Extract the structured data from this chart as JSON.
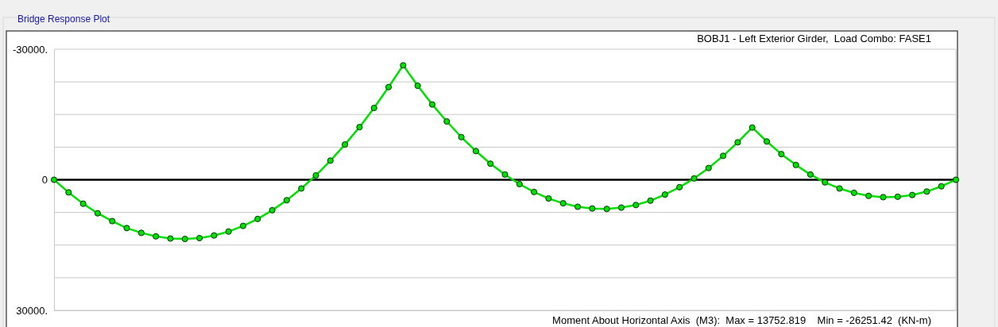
{
  "chart_data": {
    "type": "line",
    "title": "Bridge Response Plot",
    "subtitle": "BOBJ1 - Left Exterior Girder,  Load Combo: FASE1",
    "annotations": [
      "Moment About Horizontal Axis  (M3):  Max = 13752.819    Min = -26251.42  (KN-m)"
    ],
    "categories": [
      null,
      null,
      null,
      null,
      null,
      null,
      null,
      null,
      null,
      null,
      null,
      null,
      null,
      null,
      null,
      null,
      null,
      null,
      null,
      null,
      null,
      null,
      null,
      null,
      null,
      null,
      null,
      null,
      null,
      null,
      null,
      null,
      null,
      null,
      null,
      null,
      null,
      null,
      null,
      null,
      null,
      null,
      null,
      null,
      null,
      null,
      null,
      null,
      null,
      null,
      null,
      null,
      null,
      null,
      null,
      null,
      null,
      null,
      null,
      null,
      null,
      null,
      null
    ],
    "series": [
      {
        "color": "#00e000",
        "values": [
          0,
          2900,
          5500,
          7700,
          9500,
          11100,
          12200,
          13000,
          13500,
          13600,
          13400,
          12800,
          11900,
          10600,
          9000,
          7000,
          4700,
          2000,
          -1000,
          -4400,
          -8100,
          -12100,
          -16500,
          -21300,
          -26300,
          -21600,
          -17300,
          -13400,
          -9800,
          -6600,
          -3700,
          -1200,
          1000,
          2800,
          4300,
          5400,
          6200,
          6600,
          6700,
          6400,
          5800,
          4800,
          3400,
          1700,
          -300,
          -2700,
          -5500,
          -8600,
          -12000,
          -8800,
          -5900,
          -3400,
          -1200,
          600,
          2000,
          3000,
          3700,
          4000,
          3900,
          3500,
          2700,
          1500,
          0
        ]
      }
    ],
    "ylim": [
      30000,
      -30000
    ],
    "yticks": [
      {
        "value": -30000,
        "label": "-30000."
      },
      {
        "value": -22500,
        "label": null
      },
      {
        "value": -15000,
        "label": null
      },
      {
        "value": -7500,
        "label": null
      },
      {
        "value": 0,
        "label": "0"
      },
      {
        "value": 7500,
        "label": null
      },
      {
        "value": 15000,
        "label": null
      },
      {
        "value": 22500,
        "label": null
      },
      {
        "value": 30000,
        "label": "30000."
      }
    ],
    "tick_labels": "y",
    "grid": "y",
    "marker": "circle",
    "line_style": "solid",
    "ref_lines": [
      {
        "axis": "y",
        "value": 0,
        "color": "#000000"
      }
    ]
  }
}
